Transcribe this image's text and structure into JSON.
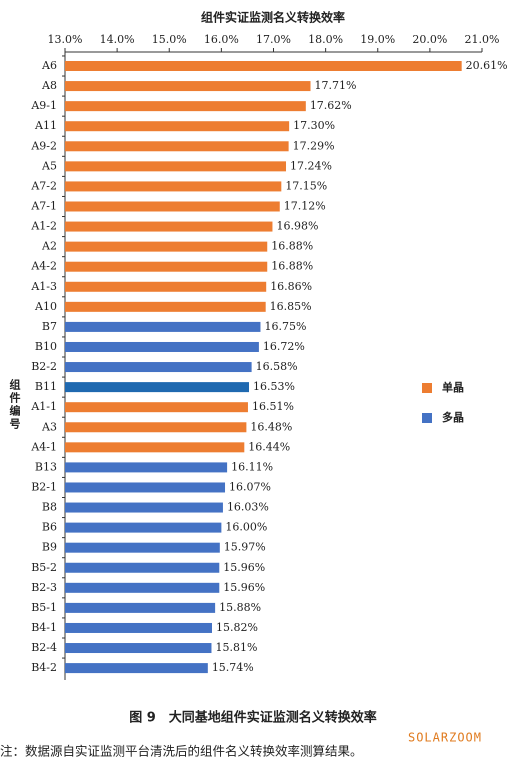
{
  "chart_data": {
    "type": "bar",
    "orientation": "horizontal",
    "title": "组件实证监测名义转换效率",
    "y_label": "组件编号",
    "categories": [
      "A6",
      "A8",
      "A9-1",
      "A11",
      "A9-2",
      "A5",
      "A7-2",
      "A7-1",
      "A1-2",
      "A2",
      "A4-2",
      "A1-3",
      "A10",
      "B7",
      "B10",
      "B2-2",
      "B11",
      "A1-1",
      "A3",
      "A4-1",
      "B13",
      "B2-1",
      "B8",
      "B6",
      "B9",
      "B5-2",
      "B2-3",
      "B5-1",
      "B4-1",
      "B2-4",
      "B4-2"
    ],
    "values": [
      20.61,
      17.71,
      17.62,
      17.3,
      17.29,
      17.24,
      17.15,
      17.12,
      16.98,
      16.88,
      16.88,
      16.86,
      16.85,
      16.75,
      16.72,
      16.58,
      16.53,
      16.51,
      16.48,
      16.44,
      16.11,
      16.07,
      16.03,
      16.0,
      15.97,
      15.96,
      15.96,
      15.88,
      15.82,
      15.81,
      15.74
    ],
    "value_labels": [
      "20.61%",
      "17.71%",
      "17.62%",
      "17.30%",
      "17.29%",
      "17.24%",
      "17.15%",
      "17.12%",
      "16.98%",
      "16.88%",
      "16.88%",
      "16.86%",
      "16.85%",
      "16.75%",
      "16.72%",
      "16.58%",
      "16.53%",
      "16.51%",
      "16.48%",
      "16.44%",
      "16.11%",
      "16.07%",
      "16.03%",
      "16.00%",
      "15.97%",
      "15.96%",
      "15.96%",
      "15.88%",
      "15.82%",
      "15.81%",
      "15.74%"
    ],
    "colors": [
      "#ed7d31",
      "#ed7d31",
      "#ed7d31",
      "#ed7d31",
      "#ed7d31",
      "#ed7d31",
      "#ed7d31",
      "#ed7d31",
      "#ed7d31",
      "#ed7d31",
      "#ed7d31",
      "#ed7d31",
      "#ed7d31",
      "#4472c4",
      "#4472c4",
      "#4472c4",
      "#1f69b0",
      "#ed7d31",
      "#ed7d31",
      "#ed7d31",
      "#4472c4",
      "#4472c4",
      "#4472c4",
      "#4472c4",
      "#4472c4",
      "#4472c4",
      "#4472c4",
      "#4472c4",
      "#4472c4",
      "#4472c4",
      "#4472c4"
    ],
    "legend": [
      {
        "name": "单晶",
        "color": "#ed7d31"
      },
      {
        "name": "多晶",
        "color": "#4472c4"
      }
    ],
    "xlim": [
      13.0,
      21.0
    ],
    "xticks": [
      {
        "value": 13.0,
        "label": "13.0%"
      },
      {
        "value": 14.0,
        "label": "14.0%"
      },
      {
        "value": 15.0,
        "label": "15.0%"
      },
      {
        "value": 16.0,
        "label": "16.0%"
      },
      {
        "value": 17.0,
        "label": "17.0%"
      },
      {
        "value": 18.0,
        "label": "18.0%"
      },
      {
        "value": 19.0,
        "label": "19.0%"
      },
      {
        "value": 20.0,
        "label": "20.0%"
      },
      {
        "value": 21.0,
        "label": "21.0%"
      }
    ],
    "grid": false,
    "caption": "图 9　大同基地组件实证监测名义转换效率",
    "note": "注：数据源自实证监测平台清洗后的组件名义转换效率测算结果。",
    "watermark": "SOLARZOOM"
  }
}
